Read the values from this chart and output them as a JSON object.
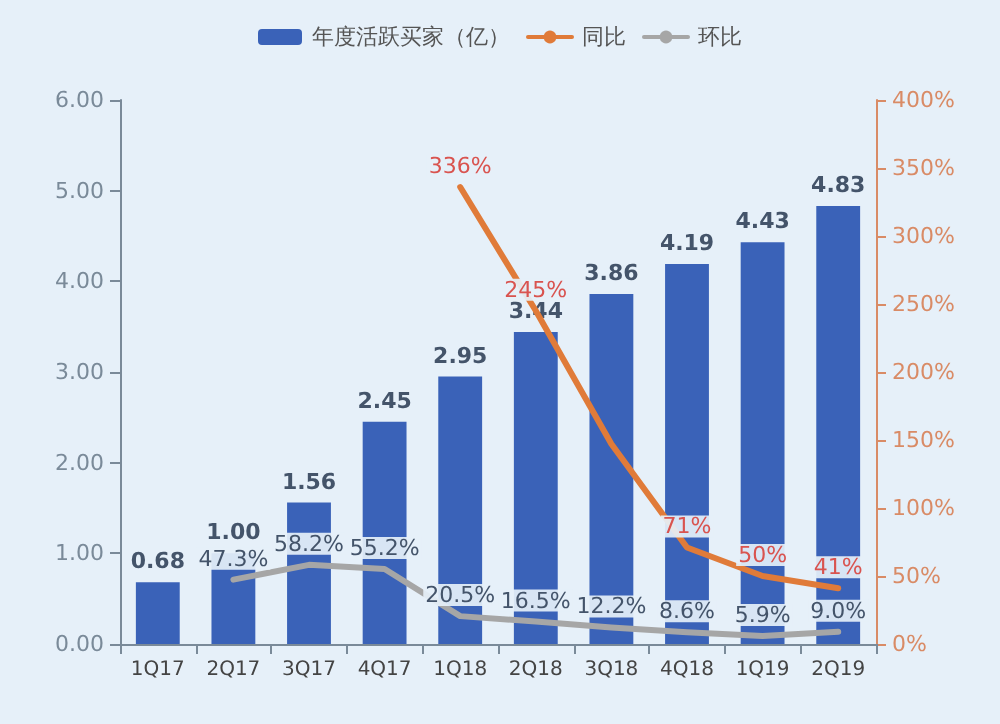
{
  "chart_data": {
    "type": "bar",
    "categories": [
      "1Q17",
      "2Q17",
      "3Q17",
      "4Q17",
      "1Q18",
      "2Q18",
      "3Q18",
      "4Q18",
      "1Q19",
      "2Q19"
    ],
    "series": [
      {
        "name": "年度活跃买家（亿）",
        "color": "#3a62b8",
        "values": [
          0.68,
          1.0,
          1.56,
          2.45,
          2.95,
          3.44,
          3.86,
          4.19,
          4.43,
          4.83
        ],
        "value_labels": [
          "0.68",
          "1.00",
          "1.56",
          "2.45",
          "2.95",
          "3.44",
          "3.86",
          "4.19",
          "4.43",
          "4.83"
        ]
      },
      {
        "name": "同比",
        "type": "line",
        "axis": "y2",
        "color": "#e07b39",
        "values": [
          null,
          null,
          null,
          null,
          336,
          245,
          147,
          71,
          50,
          41
        ],
        "value_labels": [
          null,
          null,
          null,
          null,
          "336%",
          "245%",
          null,
          "71%",
          "50%",
          "41%"
        ]
      },
      {
        "name": "环比",
        "type": "line",
        "axis": "y2",
        "color": "#a6a6a6",
        "values": [
          null,
          47.3,
          58.2,
          55.2,
          20.5,
          16.5,
          12.2,
          8.6,
          5.9,
          9.0
        ],
        "value_labels": [
          null,
          "47.3%",
          "58.2%",
          "55.2%",
          "20.5%",
          "16.5%",
          "12.2%",
          "8.6%",
          "5.9%",
          "9.0%"
        ]
      }
    ],
    "ylim": [
      0,
      6
    ],
    "yticks": [
      {
        "value": 0,
        "label": "0.00"
      },
      {
        "value": 1,
        "label": "1.00"
      },
      {
        "value": 2,
        "label": "2.00"
      },
      {
        "value": 3,
        "label": "3.00"
      },
      {
        "value": 4,
        "label": "4.00"
      },
      {
        "value": 5,
        "label": "5.00"
      },
      {
        "value": 6,
        "label": "6.00"
      }
    ],
    "y2lim": [
      0,
      400
    ],
    "y2ticks": [
      {
        "value": 0,
        "label": "0%"
      },
      {
        "value": 50,
        "label": "50%"
      },
      {
        "value": 100,
        "label": "100%"
      },
      {
        "value": 150,
        "label": "150%"
      },
      {
        "value": 200,
        "label": "200%"
      },
      {
        "value": 250,
        "label": "250%"
      },
      {
        "value": 300,
        "label": "300%"
      },
      {
        "value": 350,
        "label": "350%"
      },
      {
        "value": 400,
        "label": "400%"
      }
    ],
    "grid": false,
    "legend": "top",
    "marker": "none"
  }
}
